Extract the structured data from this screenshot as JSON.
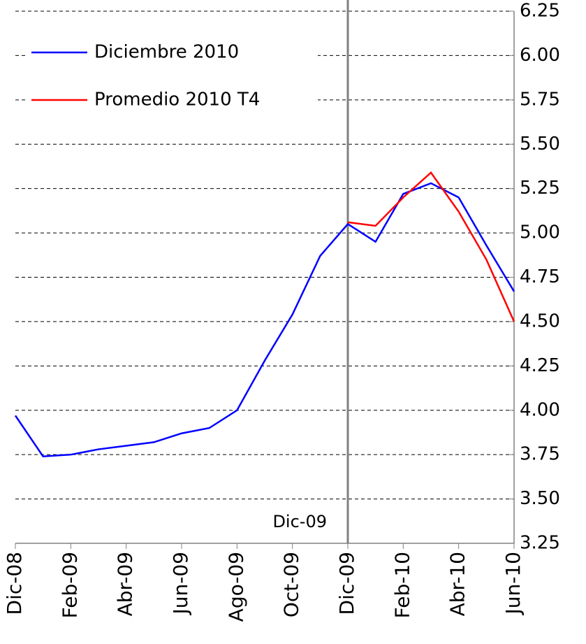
{
  "chart_data": {
    "type": "line",
    "categories": [
      "Dic-08",
      null,
      "Feb-09",
      null,
      "Abr-09",
      null,
      "Jun-09",
      null,
      "Ago-09",
      null,
      "Oct-09",
      null,
      "Dic-09",
      null,
      "Feb-10",
      null,
      "Abr-10",
      null,
      "Jun-10"
    ],
    "series": [
      {
        "name": "Diciembre 2010",
        "color": "#0000ff",
        "values": [
          3.97,
          3.74,
          3.75,
          3.78,
          3.8,
          3.82,
          3.87,
          3.9,
          4.0,
          4.28,
          4.54,
          4.87,
          5.05,
          4.95,
          5.22,
          5.28,
          5.2,
          4.93,
          4.67
        ]
      },
      {
        "name": "Promedio 2010 T4",
        "color": "#ff0000",
        "values": [
          null,
          null,
          null,
          null,
          null,
          null,
          null,
          null,
          null,
          null,
          null,
          null,
          5.06,
          5.04,
          5.2,
          5.34,
          5.12,
          4.85,
          4.5
        ]
      }
    ],
    "ylim": [
      3.25,
      6.25
    ],
    "yticks": [
      3.25,
      {
        "value": 3.5,
        "label": "3.50"
      },
      3.75,
      {
        "value": 4,
        "label": "4.00"
      },
      4.25,
      {
        "value": 4.5,
        "label": "4.50"
      },
      4.75,
      {
        "value": 5,
        "label": "5.00"
      },
      5.25,
      {
        "value": 5.5,
        "label": "5.50"
      },
      5.75,
      {
        "value": 6,
        "label": "6.00"
      },
      6.25
    ],
    "grid": true,
    "annotation": {
      "text": "Dic-09",
      "category_index": 12
    },
    "legend": "top-left"
  }
}
